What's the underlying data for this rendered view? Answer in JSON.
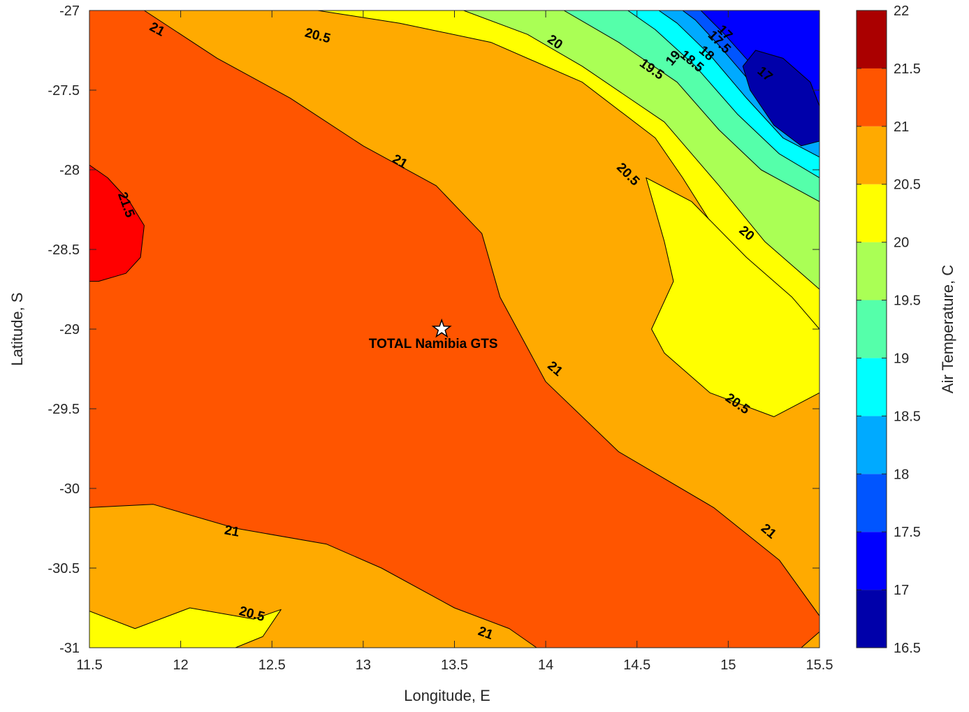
{
  "chart_data": {
    "type": "contour",
    "title": "",
    "xlabel": "Longitude, E",
    "ylabel": "Latitude, S",
    "xlim": [
      11.5,
      15.5
    ],
    "ylim": [
      -31,
      -27
    ],
    "x_ticks": [
      "11.5",
      "12",
      "12.5",
      "13",
      "13.5",
      "14",
      "14.5",
      "15",
      "15.5"
    ],
    "y_ticks": [
      "-27",
      "-27.5",
      "-28",
      "-28.5",
      "-29",
      "-29.5",
      "-30",
      "-30.5",
      "-31"
    ],
    "colorbar": {
      "label": "Air Temperature, C",
      "range": [
        16.5,
        22
      ],
      "ticks": [
        "16.5",
        "17",
        "17.5",
        "18",
        "18.5",
        "19",
        "19.5",
        "20",
        "20.5",
        "21",
        "21.5",
        "22"
      ],
      "bands": [
        {
          "from": 16.5,
          "to": 17.0,
          "color": "#0000aa"
        },
        {
          "from": 17.0,
          "to": 17.5,
          "color": "#0000ff"
        },
        {
          "from": 17.5,
          "to": 18.0,
          "color": "#0055ff"
        },
        {
          "from": 18.0,
          "to": 18.5,
          "color": "#00aaff"
        },
        {
          "from": 18.5,
          "to": 19.0,
          "color": "#00ffff"
        },
        {
          "from": 19.0,
          "to": 19.5,
          "color": "#55ffaa"
        },
        {
          "from": 19.5,
          "to": 20.0,
          "color": "#aaff55"
        },
        {
          "from": 20.0,
          "to": 20.5,
          "color": "#ffff00"
        },
        {
          "from": 20.5,
          "to": 21.0,
          "color": "#ffaa00"
        },
        {
          "from": 21.0,
          "to": 21.5,
          "color": "#ff5500"
        },
        {
          "from": 21.5,
          "to": 22.0,
          "color": "#ff0000"
        }
      ],
      "top_color": "#aa0000"
    },
    "regions": [
      {
        "level": 21.0,
        "points": [
          [
            11.5,
            -27
          ],
          [
            15.5,
            -27
          ],
          [
            15.5,
            -31
          ],
          [
            11.5,
            -31
          ]
        ]
      },
      {
        "level": 20.5,
        "points": [
          [
            11.8,
            -27
          ],
          [
            15.5,
            -27
          ],
          [
            15.5,
            -30.8
          ],
          [
            15.28,
            -30.45
          ],
          [
            14.92,
            -30.12
          ],
          [
            14.4,
            -29.77
          ],
          [
            14.0,
            -29.33
          ],
          [
            13.75,
            -28.8
          ],
          [
            13.65,
            -28.4
          ],
          [
            13.4,
            -28.1
          ],
          [
            13.0,
            -27.85
          ],
          [
            12.6,
            -27.55
          ],
          [
            12.2,
            -27.3
          ],
          [
            11.8,
            -27
          ]
        ]
      },
      {
        "level": 20.5,
        "points": [
          [
            11.5,
            -30.12
          ],
          [
            11.85,
            -30.1
          ],
          [
            12.3,
            -30.25
          ],
          [
            12.8,
            -30.35
          ],
          [
            13.1,
            -30.5
          ],
          [
            13.5,
            -30.75
          ],
          [
            13.8,
            -30.88
          ],
          [
            13.95,
            -31
          ],
          [
            11.5,
            -31
          ]
        ]
      },
      {
        "level": 20.5,
        "points": [
          [
            15.5,
            -30.9
          ],
          [
            15.5,
            -31
          ],
          [
            15.4,
            -31
          ]
        ]
      },
      {
        "level": 20.0,
        "points": [
          [
            12.75,
            -27
          ],
          [
            15.5,
            -27
          ],
          [
            15.5,
            -29.25
          ],
          [
            15.35,
            -29.0
          ],
          [
            15.2,
            -28.7
          ],
          [
            14.97,
            -28.45
          ],
          [
            14.75,
            -28.05
          ],
          [
            14.6,
            -27.8
          ],
          [
            14.2,
            -27.45
          ],
          [
            13.7,
            -27.2
          ],
          [
            13.2,
            -27.08
          ],
          [
            12.75,
            -27
          ]
        ]
      },
      {
        "level": 20.0,
        "points": [
          [
            11.5,
            -30.77
          ],
          [
            11.75,
            -30.88
          ],
          [
            12.05,
            -30.75
          ],
          [
            12.4,
            -30.82
          ],
          [
            12.55,
            -30.76
          ],
          [
            12.45,
            -30.93
          ],
          [
            12.3,
            -31
          ],
          [
            11.5,
            -31
          ]
        ]
      },
      {
        "level": 20.0,
        "points": [
          [
            14.58,
            -29.0
          ],
          [
            14.7,
            -28.7
          ],
          [
            14.65,
            -28.45
          ],
          [
            14.55,
            -28.05
          ],
          [
            14.8,
            -28.2
          ],
          [
            15.1,
            -28.55
          ],
          [
            15.35,
            -28.8
          ],
          [
            15.5,
            -29.0
          ],
          [
            15.5,
            -29.4
          ],
          [
            15.25,
            -29.55
          ],
          [
            14.9,
            -29.4
          ],
          [
            14.65,
            -29.15
          ]
        ]
      },
      {
        "level": 19.5,
        "points": [
          [
            13.55,
            -27
          ],
          [
            15.5,
            -27
          ],
          [
            15.5,
            -28.75
          ],
          [
            15.2,
            -28.45
          ],
          [
            14.95,
            -28.1
          ],
          [
            14.65,
            -27.7
          ],
          [
            14.2,
            -27.35
          ],
          [
            13.9,
            -27.15
          ]
        ]
      },
      {
        "level": 19.0,
        "points": [
          [
            14.1,
            -27
          ],
          [
            15.5,
            -27
          ],
          [
            15.5,
            -28.2
          ],
          [
            15.18,
            -28.0
          ],
          [
            14.95,
            -27.75
          ],
          [
            14.72,
            -27.45
          ],
          [
            14.4,
            -27.2
          ]
        ]
      },
      {
        "level": 18.5,
        "points": [
          [
            14.45,
            -27
          ],
          [
            15.5,
            -27
          ],
          [
            15.5,
            -28.05
          ],
          [
            15.28,
            -27.9
          ],
          [
            15.05,
            -27.65
          ],
          [
            14.82,
            -27.35
          ],
          [
            14.6,
            -27.12
          ]
        ]
      },
      {
        "level": 18.0,
        "points": [
          [
            14.62,
            -27
          ],
          [
            15.5,
            -27
          ],
          [
            15.5,
            -27.92
          ],
          [
            15.3,
            -27.8
          ],
          [
            15.1,
            -27.55
          ],
          [
            14.9,
            -27.28
          ],
          [
            14.72,
            -27.08
          ]
        ]
      },
      {
        "level": 17.5,
        "points": [
          [
            14.75,
            -27
          ],
          [
            15.5,
            -27
          ],
          [
            15.5,
            -27.78
          ],
          [
            15.3,
            -27.65
          ],
          [
            15.1,
            -27.42
          ],
          [
            14.95,
            -27.22
          ],
          [
            14.82,
            -27.06
          ]
        ]
      },
      {
        "level": 17.0,
        "points": [
          [
            14.85,
            -27
          ],
          [
            15.5,
            -27
          ],
          [
            15.5,
            -27.62
          ],
          [
            15.3,
            -27.52
          ],
          [
            15.12,
            -27.33
          ],
          [
            14.98,
            -27.15
          ]
        ]
      },
      {
        "level": 16.5,
        "points": [
          [
            15.15,
            -27.25
          ],
          [
            15.3,
            -27.3
          ],
          [
            15.45,
            -27.45
          ],
          [
            15.5,
            -27.6
          ],
          [
            15.5,
            -27.82
          ],
          [
            15.4,
            -27.85
          ],
          [
            15.25,
            -27.72
          ],
          [
            15.12,
            -27.5
          ],
          [
            15.08,
            -27.35
          ]
        ]
      },
      {
        "level": 21.5,
        "points": [
          [
            11.5,
            -27.97
          ],
          [
            11.6,
            -28.05
          ],
          [
            11.72,
            -28.2
          ],
          [
            11.8,
            -28.35
          ],
          [
            11.78,
            -28.55
          ],
          [
            11.7,
            -28.65
          ],
          [
            11.55,
            -28.7
          ],
          [
            11.5,
            -28.7
          ]
        ]
      }
    ],
    "contour_labels": [
      {
        "x": 11.87,
        "y": -27.12,
        "text": "21",
        "angle": 28
      },
      {
        "x": 12.75,
        "y": -27.16,
        "text": "20.5",
        "angle": 15
      },
      {
        "x": 14.05,
        "y": -27.2,
        "text": "20",
        "angle": 35
      },
      {
        "x": 14.58,
        "y": -27.37,
        "text": "19.5",
        "angle": 35
      },
      {
        "x": 14.7,
        "y": -27.3,
        "text": "19",
        "angle": -50
      },
      {
        "x": 14.8,
        "y": -27.32,
        "text": "18.5",
        "angle": 40
      },
      {
        "x": 14.88,
        "y": -27.27,
        "text": "18",
        "angle": 40
      },
      {
        "x": 14.95,
        "y": -27.2,
        "text": "17.5",
        "angle": 45
      },
      {
        "x": 14.98,
        "y": -27.14,
        "text": "17",
        "angle": 45
      },
      {
        "x": 15.2,
        "y": -27.4,
        "text": "17",
        "angle": 40
      },
      {
        "x": 13.2,
        "y": -27.95,
        "text": "21",
        "angle": 30
      },
      {
        "x": 14.45,
        "y": -28.03,
        "text": "20.5",
        "angle": 45
      },
      {
        "x": 15.1,
        "y": -28.4,
        "text": "20",
        "angle": 40
      },
      {
        "x": 11.7,
        "y": -28.22,
        "text": "21.5",
        "angle": 70
      },
      {
        "x": 14.05,
        "y": -29.25,
        "text": "21",
        "angle": 40
      },
      {
        "x": 15.05,
        "y": -29.47,
        "text": "20.5",
        "angle": 35
      },
      {
        "x": 12.28,
        "y": -30.27,
        "text": "21",
        "angle": 10
      },
      {
        "x": 12.39,
        "y": -30.79,
        "text": "20.5",
        "angle": 15
      },
      {
        "x": 15.22,
        "y": -30.27,
        "text": "21",
        "angle": 40
      },
      {
        "x": 13.67,
        "y": -30.91,
        "text": "21",
        "angle": 20
      }
    ],
    "station": {
      "name": "TOTAL Namibia GTS",
      "lon": 13.43,
      "lat": -29.0
    }
  }
}
